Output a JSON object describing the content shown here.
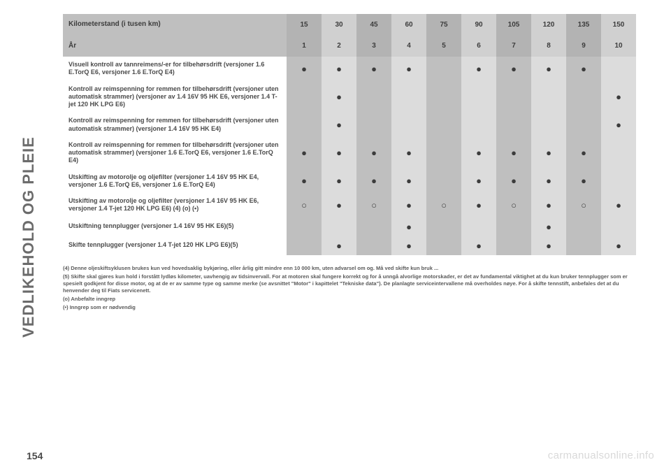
{
  "sidebar_label": "VEDLIKEHOLD OG PLEIE",
  "page_number": "154",
  "watermark": "carmanualsonline.info",
  "table": {
    "col_stripe_start": "odd",
    "headers": [
      {
        "desc": "Kilometerstand (i tusen km)",
        "values": [
          "15",
          "30",
          "45",
          "60",
          "75",
          "90",
          "105",
          "120",
          "135",
          "150"
        ]
      },
      {
        "desc": "År",
        "values": [
          "1",
          "2",
          "3",
          "4",
          "5",
          "6",
          "7",
          "8",
          "9",
          "10"
        ]
      }
    ],
    "rows": [
      {
        "desc": "Visuell kontroll av tannreimens/-er for tilbehørsdrift (versjoner 1.6 E.TorQ E6, versjoner 1.6 E.TorQ E4)",
        "marks": [
          "dot",
          "dot",
          "dot",
          "dot",
          "",
          "dot",
          "dot",
          "dot",
          "dot",
          ""
        ]
      },
      {
        "desc": "Kontroll av reimspenning for remmen for tilbehørsdrift (versjoner uten automatisk strammer) (versjoner av 1.4 16V 95 HK E6, versjoner 1.4 T-jet 120 HK LPG E6)",
        "marks": [
          "",
          "dot",
          "",
          "",
          "",
          "",
          "",
          "",
          "",
          "dot"
        ]
      },
      {
        "desc": "Kontroll av reimspenning for remmen for tilbehørsdrift (versjoner uten automatisk strammer) (versjoner 1.4 16V 95 HK E4)",
        "marks": [
          "",
          "dot",
          "",
          "",
          "",
          "",
          "",
          "",
          "",
          "dot"
        ]
      },
      {
        "desc": "Kontroll av reimspenning for remmen for tilbehørsdrift (versjoner uten automatisk strammer) (versjoner 1.6 E.TorQ E6, versjoner 1.6 E.TorQ E4)",
        "marks": [
          "dot",
          "dot",
          "dot",
          "dot",
          "",
          "dot",
          "dot",
          "dot",
          "dot",
          ""
        ]
      },
      {
        "desc": "Utskifting av motorolje og oljefilter (versjoner 1.4 16V 95 HK E4, versjoner 1.6 E.TorQ E6, versjoner 1.6 E.TorQ E4)",
        "marks": [
          "dot",
          "dot",
          "dot",
          "dot",
          "",
          "dot",
          "dot",
          "dot",
          "dot",
          ""
        ]
      },
      {
        "desc": "Utskifting av motorolje og oljefilter (versjoner 1.4 16V 95 HK E6, versjoner 1.4 T-jet 120 HK LPG E6) (4) (o) (•)",
        "marks": [
          "ring",
          "dot",
          "ring",
          "dot",
          "ring",
          "dot",
          "ring",
          "dot",
          "ring",
          "dot"
        ]
      },
      {
        "desc": "Utskiftning tennplugger (versjoner 1.4 16V 95 HK E6)(5)",
        "marks": [
          "",
          "",
          "",
          "dot",
          "",
          "",
          "",
          "dot",
          "",
          ""
        ]
      },
      {
        "desc": "Skifte tennplugger (versjoner 1.4 T-jet 120 HK LPG E6)(5)",
        "marks": [
          "",
          "dot",
          "",
          "dot",
          "",
          "dot",
          "",
          "dot",
          "",
          "dot"
        ]
      }
    ]
  },
  "footnotes": [
    "(4) Denne oljeskiftsyklusen brukes kun ved hovedsaklig bykjøring, eller årlig gitt mindre enn 10 000 km, uten advarsel om og. Må ved skifte kun bruk ...",
    "(5) Skifte skal gjøres kun hold i forstått lydløs kilometer, uavhengig av tidsinvervall. For at motoren skal fungere korrekt og for å unngå alvorlige motorskader, er det av fundamental viktighet at du kun bruker tennplugger som er spesielt godkjent for disse motor, og at de er av samme type og samme merke (se avsnittet \"Motor\" i kapittelet \"Tekniske data\"). De planlagte serviceintervallene må overholdes nøye. For å skifte tennstift, anbefales det at du henvender deg til Fiats servicenett.",
    "(o) Anbefalte inngrep",
    "(•) Inngrep som er nødvendig"
  ]
}
